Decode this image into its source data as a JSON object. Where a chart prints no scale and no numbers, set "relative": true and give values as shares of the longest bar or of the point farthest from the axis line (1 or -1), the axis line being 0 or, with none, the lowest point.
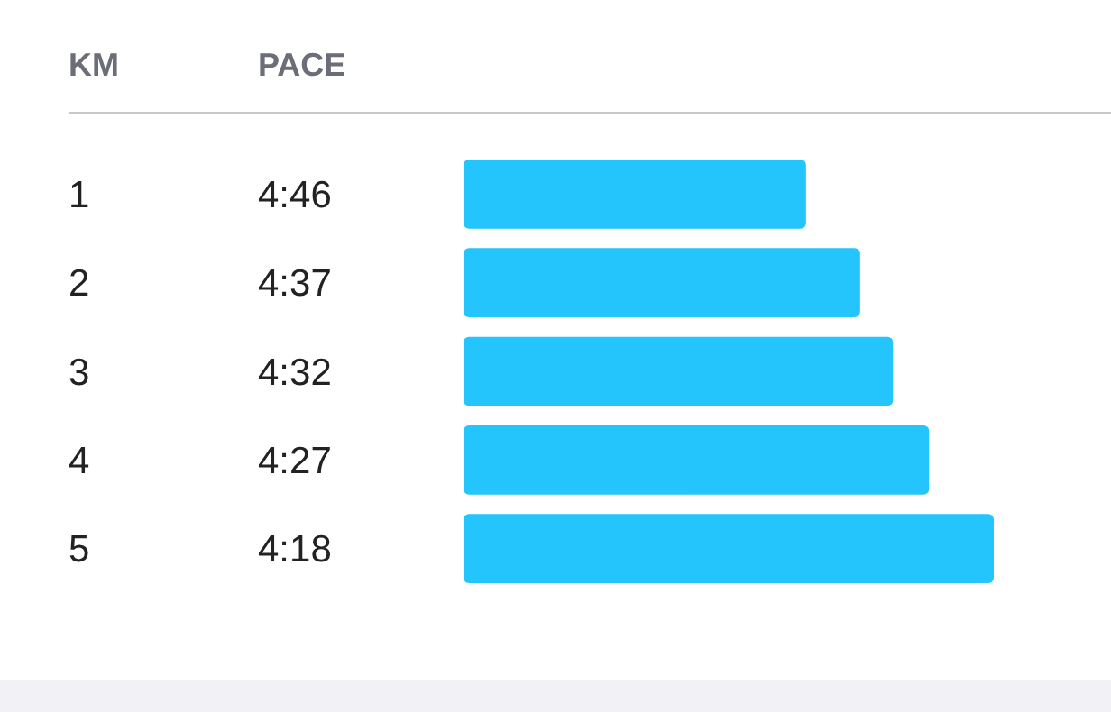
{
  "chart_data": {
    "type": "bar",
    "orientation": "horizontal",
    "relative": true,
    "ylabel": "KM",
    "xlabel": "PACE",
    "categories": [
      "1",
      "2",
      "3",
      "4",
      "5"
    ],
    "values": [
      0.646,
      0.748,
      0.81,
      0.878,
      1
    ],
    "annotations": [
      "4:46",
      "4:37",
      "4:32",
      "4:27",
      "4:18"
    ],
    "color": "#24c4fc"
  }
}
